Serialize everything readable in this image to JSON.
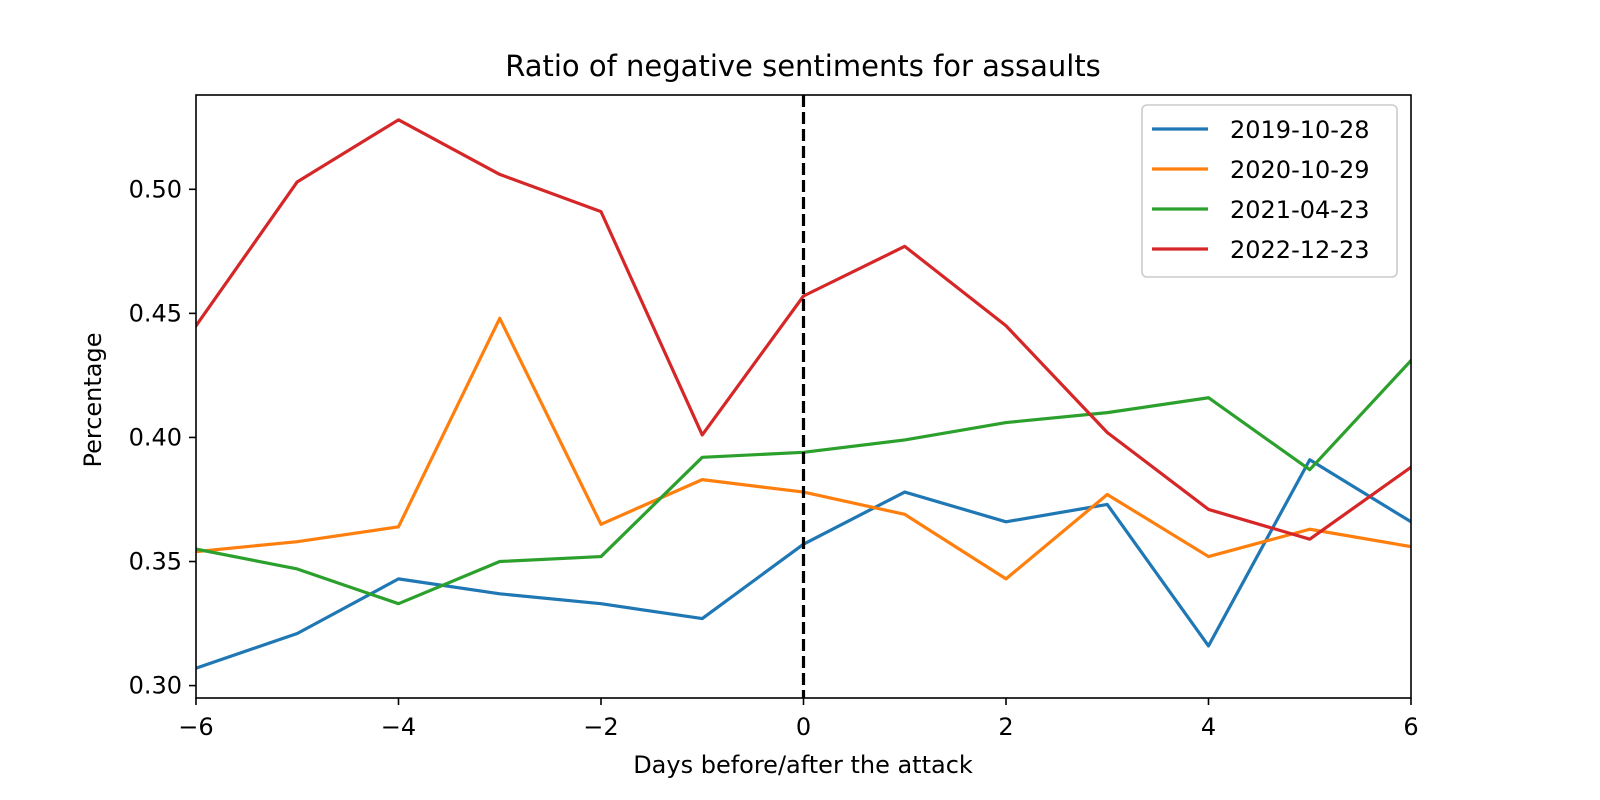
{
  "chart_data": {
    "type": "line",
    "title": "Ratio of negative sentiments for assaults",
    "xlabel": "Days before/after the attack",
    "ylabel": "Percentage",
    "x": [
      -6,
      -5,
      -4,
      -3,
      -2,
      -1,
      0,
      1,
      2,
      3,
      4,
      5,
      6
    ],
    "xlim": [
      -6,
      6
    ],
    "ylim": [
      0.295,
      0.538
    ],
    "xticks": [
      -6,
      -4,
      -2,
      0,
      2,
      4,
      6
    ],
    "xtick_labels": [
      "−6",
      "−4",
      "−2",
      "0",
      "2",
      "4",
      "6"
    ],
    "yticks": [
      0.3,
      0.35,
      0.4,
      0.45,
      0.5
    ],
    "ytick_labels": [
      "0.30",
      "0.35",
      "0.40",
      "0.45",
      "0.50"
    ],
    "grid": false,
    "legend_position": "top-right",
    "reference_line": {
      "x": 0,
      "style": "dashed",
      "color": "#000000"
    },
    "series": [
      {
        "name": "2019-10-28",
        "color": "#1f77b4",
        "values": [
          0.307,
          0.321,
          0.343,
          0.337,
          0.333,
          0.327,
          0.357,
          0.378,
          0.366,
          0.373,
          0.316,
          0.391,
          0.366
        ]
      },
      {
        "name": "2020-10-29",
        "color": "#ff7f0e",
        "values": [
          0.354,
          0.358,
          0.364,
          0.448,
          0.365,
          0.383,
          0.378,
          0.369,
          0.343,
          0.377,
          0.352,
          0.363,
          0.356
        ]
      },
      {
        "name": "2021-04-23",
        "color": "#2ca02c",
        "values": [
          0.355,
          0.347,
          0.333,
          0.35,
          0.352,
          0.392,
          0.394,
          0.399,
          0.406,
          0.41,
          0.416,
          0.387,
          0.431
        ]
      },
      {
        "name": "2022-12-23",
        "color": "#d62728",
        "values": [
          0.445,
          0.503,
          0.528,
          0.506,
          0.491,
          0.401,
          0.457,
          0.477,
          0.445,
          0.402,
          0.371,
          0.359,
          0.388
        ]
      }
    ]
  }
}
